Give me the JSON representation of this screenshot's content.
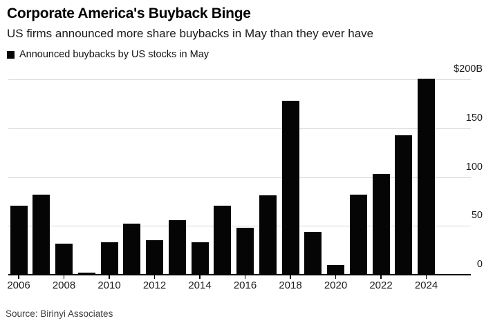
{
  "header": {
    "title": "Corporate America's Buyback Binge",
    "subtitle": "US firms announced more share buybacks in May than they ever have"
  },
  "legend": {
    "label": "Announced buybacks by US stocks in May",
    "swatch_color": "#050505"
  },
  "source": "Source: Birinyi Associates",
  "colors": {
    "bar": "#050505",
    "gridline": "#d8d8d8",
    "axis": "#000000",
    "text": "#1a1a1a",
    "source_text": "#3f3f3f"
  },
  "chart_data": {
    "type": "bar",
    "title": "Corporate America's Buyback Binge",
    "subtitle": "US firms announced more share buybacks in May than they ever have",
    "series_label": "Announced buybacks by US stocks in May",
    "unit": "USD billions",
    "categories": [
      2006,
      2007,
      2008,
      2009,
      2010,
      2011,
      2012,
      2013,
      2014,
      2015,
      2016,
      2017,
      2018,
      2019,
      2020,
      2021,
      2022,
      2023,
      2024
    ],
    "values": [
      71,
      82,
      32,
      2,
      33,
      52,
      35,
      56,
      33,
      71,
      48,
      81,
      178,
      44,
      10,
      82,
      103,
      143,
      201
    ],
    "ylim": [
      0,
      200
    ],
    "y_ticks": [
      {
        "value": 200,
        "label": "$200B"
      },
      {
        "value": 150,
        "label": "150"
      },
      {
        "value": 100,
        "label": "100"
      },
      {
        "value": 50,
        "label": "50"
      },
      {
        "value": 0,
        "label": "0"
      }
    ],
    "x_tick_years": [
      2006,
      2008,
      2010,
      2012,
      2014,
      2016,
      2018,
      2020,
      2022,
      2024
    ],
    "grid": "horizontal",
    "legend_position": "top-left",
    "y_axis_side": "right",
    "source": "Source: Birinyi Associates"
  }
}
